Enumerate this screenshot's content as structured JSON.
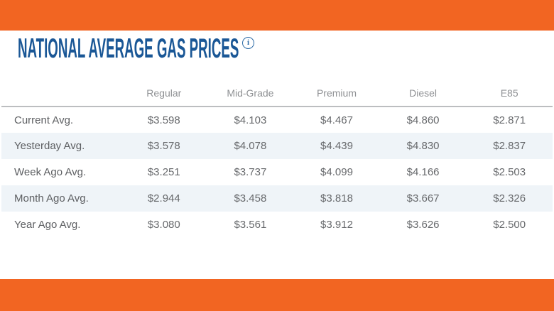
{
  "theme": {
    "accent_orange": "#f26522",
    "title_blue": "#1a5796",
    "info_icon_blue": "#2c6ba6",
    "alt_row_blue": "#eff4f8",
    "header_gray": "#8f9194",
    "body_gray": "#67696c",
    "divider_gray": "#bcbec0",
    "background": "#ffffff"
  },
  "header": {
    "title": "NATIONAL AVERAGE GAS PRICES",
    "info_icon_glyph": "i"
  },
  "table": {
    "columns": [
      "Regular",
      "Mid-Grade",
      "Premium",
      "Diesel",
      "E85"
    ],
    "rows": [
      {
        "label": "Current Avg.",
        "values": [
          "$3.598",
          "$4.103",
          "$4.467",
          "$4.860",
          "$2.871"
        ]
      },
      {
        "label": "Yesterday Avg.",
        "values": [
          "$3.578",
          "$4.078",
          "$4.439",
          "$4.830",
          "$2.837"
        ]
      },
      {
        "label": "Week Ago Avg.",
        "values": [
          "$3.251",
          "$3.737",
          "$4.099",
          "$4.166",
          "$2.503"
        ]
      },
      {
        "label": "Month Ago Avg.",
        "values": [
          "$2.944",
          "$3.458",
          "$3.818",
          "$3.667",
          "$2.326"
        ]
      },
      {
        "label": "Year Ago Avg.",
        "values": [
          "$3.080",
          "$3.561",
          "$3.912",
          "$3.626",
          "$2.500"
        ]
      }
    ]
  },
  "chart_data": {
    "type": "table",
    "title": "National Average Gas Prices",
    "categories": [
      "Regular",
      "Mid-Grade",
      "Premium",
      "Diesel",
      "E85"
    ],
    "series": [
      {
        "name": "Current Avg.",
        "values": [
          3.598,
          4.103,
          4.467,
          4.86,
          2.871
        ]
      },
      {
        "name": "Yesterday Avg.",
        "values": [
          3.578,
          4.078,
          4.439,
          4.83,
          2.837
        ]
      },
      {
        "name": "Week Ago Avg.",
        "values": [
          3.251,
          3.737,
          4.099,
          4.166,
          2.503
        ]
      },
      {
        "name": "Month Ago Avg.",
        "values": [
          2.944,
          3.458,
          3.818,
          3.667,
          2.326
        ]
      },
      {
        "name": "Year Ago Avg.",
        "values": [
          3.08,
          3.561,
          3.912,
          3.626,
          2.5
        ]
      }
    ],
    "units": "USD per gallon"
  }
}
